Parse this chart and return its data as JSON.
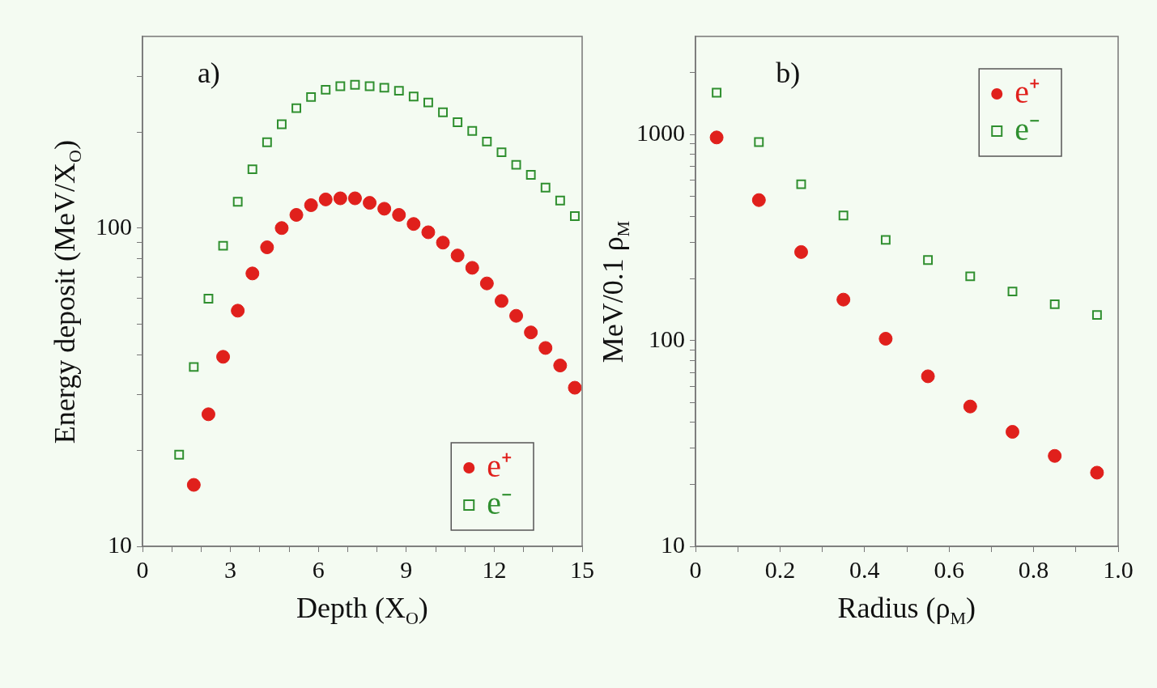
{
  "chart_data": [
    {
      "type": "scatter",
      "xlabel": "Depth (X$_{O}$)",
      "ylabel": "Energy deposit (MeV/X$_{O}$)",
      "annotations": [
        "a)"
      ],
      "log": "y",
      "xlim": [
        0,
        15
      ],
      "xticks": [
        0,
        {
          "value": 1,
          "label": null
        },
        {
          "value": 2,
          "label": null
        },
        3,
        {
          "value": 4,
          "label": null
        },
        {
          "value": 5,
          "label": null
        },
        6,
        {
          "value": 7,
          "label": null
        },
        {
          "value": 8,
          "label": null
        },
        9,
        {
          "value": 10,
          "label": null
        },
        {
          "value": 11,
          "label": null
        },
        12,
        {
          "value": 13,
          "label": null
        },
        {
          "value": 14,
          "label": null
        },
        15
      ],
      "ylim": [
        10,
        400
      ],
      "yticks": [
        10,
        {
          "value": 20,
          "label": null
        },
        {
          "value": 30,
          "label": null
        },
        {
          "value": 40,
          "label": null
        },
        {
          "value": 50,
          "label": null
        },
        {
          "value": 60,
          "label": null
        },
        {
          "value": 70,
          "label": null
        },
        {
          "value": 80,
          "label": null
        },
        {
          "value": 90,
          "label": null
        },
        100,
        {
          "value": 200,
          "label": null
        },
        {
          "value": 300,
          "label": null
        }
      ],
      "grid": false,
      "legend": "bottom right",
      "series": [
        {
          "name": "e⁺",
          "color": "#e0201c",
          "marker": "circle",
          "x": [
            1.75,
            2.25,
            2.75,
            3.25,
            3.75,
            4.25,
            4.75,
            5.25,
            5.75,
            6.25,
            6.75,
            7.25,
            7.75,
            8.25,
            8.75,
            9.25,
            9.75,
            10.25,
            10.75,
            11.25,
            11.75,
            12.25,
            12.75,
            13.25,
            13.75,
            14.25,
            14.75
          ],
          "values": [
            15.6,
            26,
            39.4,
            55,
            72,
            87,
            100,
            110,
            118,
            123,
            124,
            124,
            120,
            115,
            110,
            103,
            97,
            90,
            82,
            75,
            67,
            59,
            53,
            47,
            42,
            37,
            31.5
          ]
        },
        {
          "name": "e⁻",
          "color": "#2f8f2f",
          "marker": "square",
          "x": [
            1.25,
            1.75,
            2.25,
            2.75,
            3.25,
            3.75,
            4.25,
            4.75,
            5.25,
            5.75,
            6.25,
            6.75,
            7.25,
            7.75,
            8.25,
            8.75,
            9.25,
            9.75,
            10.25,
            10.75,
            11.25,
            11.75,
            12.25,
            12.75,
            13.25,
            13.75,
            14.25,
            14.75
          ],
          "values": [
            19.4,
            36.6,
            60,
            88,
            121,
            153,
            186,
            212,
            238,
            258,
            272,
            279,
            282,
            279,
            276,
            270,
            259,
            248,
            231,
            215,
            202,
            187,
            173,
            158,
            147,
            134,
            122,
            109
          ]
        }
      ]
    },
    {
      "type": "scatter",
      "xlabel": "Radius (ρ$_{M}$)",
      "ylabel": "MeV/0.1 ρ$_{M}$",
      "annotations": [
        "b)"
      ],
      "log": "y",
      "x": [
        0.05,
        0.15,
        0.25,
        0.35,
        0.45,
        0.55,
        0.65,
        0.75,
        0.85,
        0.95
      ],
      "xlim": [
        0,
        1
      ],
      "xticks": [
        0,
        {
          "value": 0.1,
          "label": null
        },
        0.2,
        {
          "value": 0.3,
          "label": null
        },
        0.4,
        {
          "value": 0.5,
          "label": null
        },
        0.6,
        {
          "value": 0.7,
          "label": null
        },
        0.8,
        {
          "value": 0.9,
          "label": null
        },
        {
          "value": 1,
          "label": "1.0"
        }
      ],
      "ylim": [
        10,
        3000
      ],
      "yticks": [
        10,
        {
          "value": 20,
          "label": null
        },
        {
          "value": 30,
          "label": null
        },
        {
          "value": 40,
          "label": null
        },
        {
          "value": 50,
          "label": null
        },
        {
          "value": 60,
          "label": null
        },
        {
          "value": 70,
          "label": null
        },
        {
          "value": 80,
          "label": null
        },
        {
          "value": 90,
          "label": null
        },
        100,
        {
          "value": 200,
          "label": null
        },
        {
          "value": 300,
          "label": null
        },
        {
          "value": 400,
          "label": null
        },
        {
          "value": 500,
          "label": null
        },
        {
          "value": 600,
          "label": null
        },
        {
          "value": 700,
          "label": null
        },
        {
          "value": 800,
          "label": null
        },
        {
          "value": 900,
          "label": null
        },
        1000,
        {
          "value": 2000,
          "label": null
        }
      ],
      "grid": false,
      "legend": "top right",
      "series": [
        {
          "name": "e⁺",
          "color": "#e0201c",
          "marker": "circle",
          "values": [
            969,
            481,
            269,
            158,
            102,
            67,
            47.8,
            36,
            27.5,
            22.8
          ]
        },
        {
          "name": "e⁻",
          "color": "#2f8f2f",
          "marker": "square",
          "values": [
            1600,
            921,
            574,
            405,
            308,
            246,
            205,
            173,
            150,
            133
          ]
        }
      ]
    }
  ]
}
